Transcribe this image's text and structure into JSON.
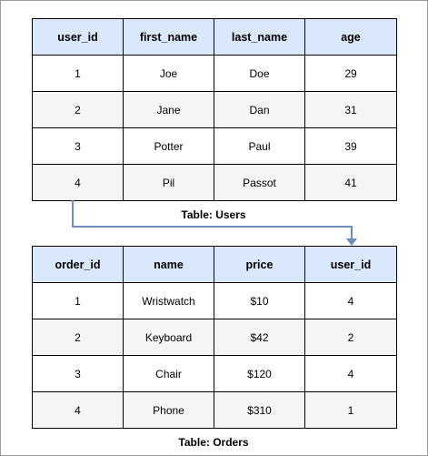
{
  "users_table": {
    "caption": "Table: Users",
    "headers": [
      "user_id",
      "first_name",
      "last_name",
      "age"
    ],
    "rows": [
      [
        "1",
        "Joe",
        "Doe",
        "29"
      ],
      [
        "2",
        "Jane",
        "Dan",
        "31"
      ],
      [
        "3",
        "Potter",
        "Paul",
        "39"
      ],
      [
        "4",
        "Pil",
        "Passot",
        "41"
      ]
    ]
  },
  "orders_table": {
    "caption": "Table: Orders",
    "headers": [
      "order_id",
      "name",
      "price",
      "user_id"
    ],
    "rows": [
      [
        "1",
        "Wristwatch",
        "$10",
        "4"
      ],
      [
        "2",
        "Keyboard",
        "$42",
        "2"
      ],
      [
        "3",
        "Chair",
        "$120",
        "4"
      ],
      [
        "4",
        "Phone",
        "$310",
        "1"
      ]
    ]
  },
  "colors": {
    "header_fill": "#dae8fc",
    "alt_row_fill": "#f5f5f5",
    "connector": "#6c8ebf"
  }
}
